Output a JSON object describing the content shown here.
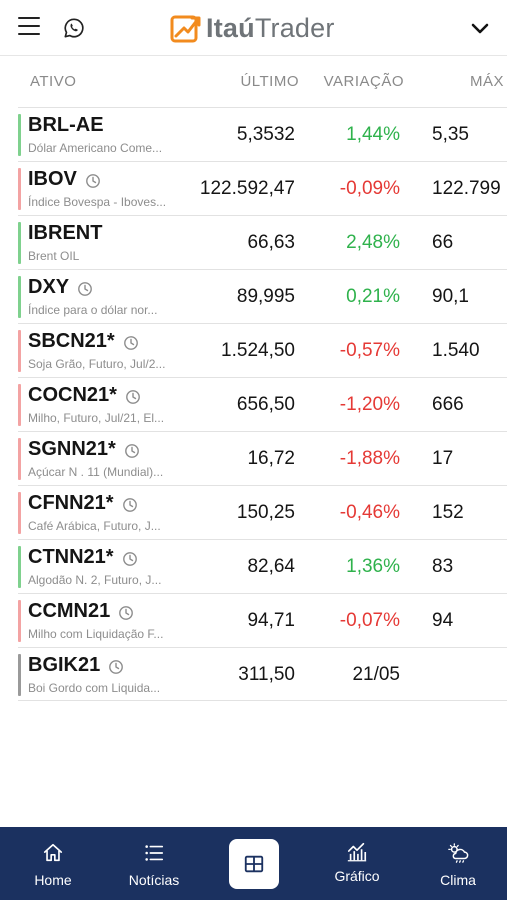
{
  "header": {
    "logo_bold": "Itaú",
    "logo_light": "Trader"
  },
  "columns": {
    "ativo": "ATIVO",
    "ultimo": "ÚLTIMO",
    "variacao": "VARIAÇÃO",
    "maxima": "MÁX"
  },
  "colors": {
    "up": "#2fb24c",
    "down": "#e53935",
    "up_bar": "#7fd18e",
    "down_bar": "#f3a3a3",
    "neutral_bar": "#9a9a9a",
    "nav_bg": "#1b3160",
    "logo_orange": "#f28b1e"
  },
  "rows": [
    {
      "symbol": "BRL-AE",
      "desc": "Dólar Americano Come...",
      "last": "5,3532",
      "change": "1,44%",
      "max": "5,35",
      "trend": "up",
      "clock": false
    },
    {
      "symbol": "IBOV",
      "desc": "Índice Bovespa - Iboves...",
      "last": "122.592,47",
      "change": "-0,09%",
      "max": "122.799",
      "trend": "down",
      "clock": true
    },
    {
      "symbol": "IBRENT",
      "desc": "Brent OIL",
      "last": "66,63",
      "change": "2,48%",
      "max": "66",
      "trend": "up",
      "clock": false
    },
    {
      "symbol": "DXY",
      "desc": "Índice para o dólar nor...",
      "last": "89,995",
      "change": "0,21%",
      "max": "90,1",
      "trend": "up",
      "clock": true
    },
    {
      "symbol": "SBCN21*",
      "desc": "Soja Grão, Futuro, Jul/2...",
      "last": "1.524,50",
      "change": "-0,57%",
      "max": "1.540",
      "trend": "down",
      "clock": true
    },
    {
      "symbol": "COCN21*",
      "desc": "Milho, Futuro, Jul/21, El...",
      "last": "656,50",
      "change": "-1,20%",
      "max": "666",
      "trend": "down",
      "clock": true
    },
    {
      "symbol": "SGNN21*",
      "desc": "Açúcar N . 11 (Mundial)...",
      "last": "16,72",
      "change": "-1,88%",
      "max": "17",
      "trend": "down",
      "clock": true
    },
    {
      "symbol": "CFNN21*",
      "desc": "Café Arábica, Futuro, J...",
      "last": "150,25",
      "change": "-0,46%",
      "max": "152",
      "trend": "down",
      "clock": true
    },
    {
      "symbol": "CTNN21*",
      "desc": "Algodão N. 2, Futuro, J...",
      "last": "82,64",
      "change": "1,36%",
      "max": "83",
      "trend": "up",
      "clock": true
    },
    {
      "symbol": "CCMN21",
      "desc": "Milho com Liquidação F...",
      "last": "94,71",
      "change": "-0,07%",
      "max": "94",
      "trend": "down",
      "clock": true
    },
    {
      "symbol": "BGIK21",
      "desc": "Boi Gordo com Liquida...",
      "last": "311,50",
      "change": "21/05",
      "max": "",
      "trend": "neutral",
      "clock": true
    }
  ],
  "nav": {
    "home": "Home",
    "noticias": "Notícias",
    "grafico": "Gráfico",
    "clima": "Clima",
    "center_icon": "grid-icon"
  }
}
